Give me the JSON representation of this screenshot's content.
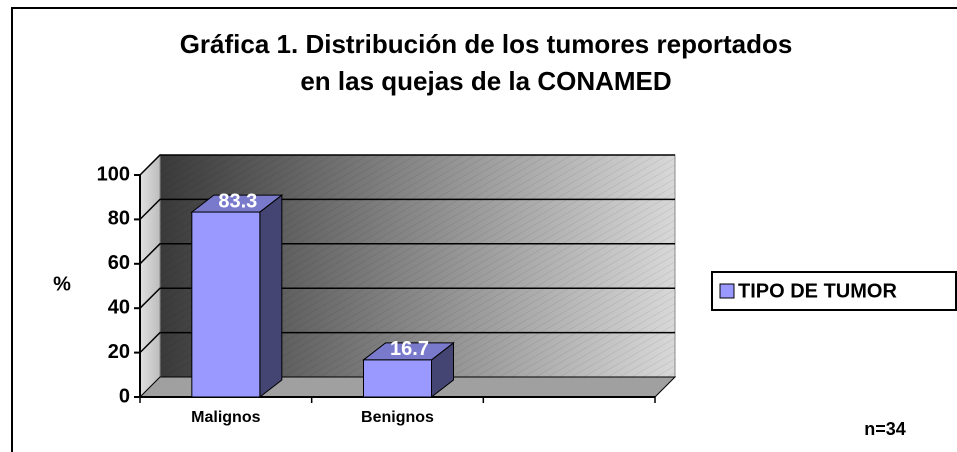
{
  "chart_data": {
    "type": "bar",
    "title": [
      "Gráfica 1. Distribución de los tumores reportados",
      "en las quejas de la CONAMED"
    ],
    "ylabel": "%",
    "annotation": "n=34",
    "categories": [
      "Malignos",
      "Benignos",
      null
    ],
    "series": [
      {
        "name": "TIPO DE TUMOR",
        "color": "#9999ff",
        "values": [
          83.3,
          16.7,
          null
        ]
      }
    ],
    "ylim": [
      0,
      100
    ],
    "yticks": [
      0,
      20,
      40,
      60,
      80,
      100
    ],
    "grid": true,
    "legend": "right"
  }
}
